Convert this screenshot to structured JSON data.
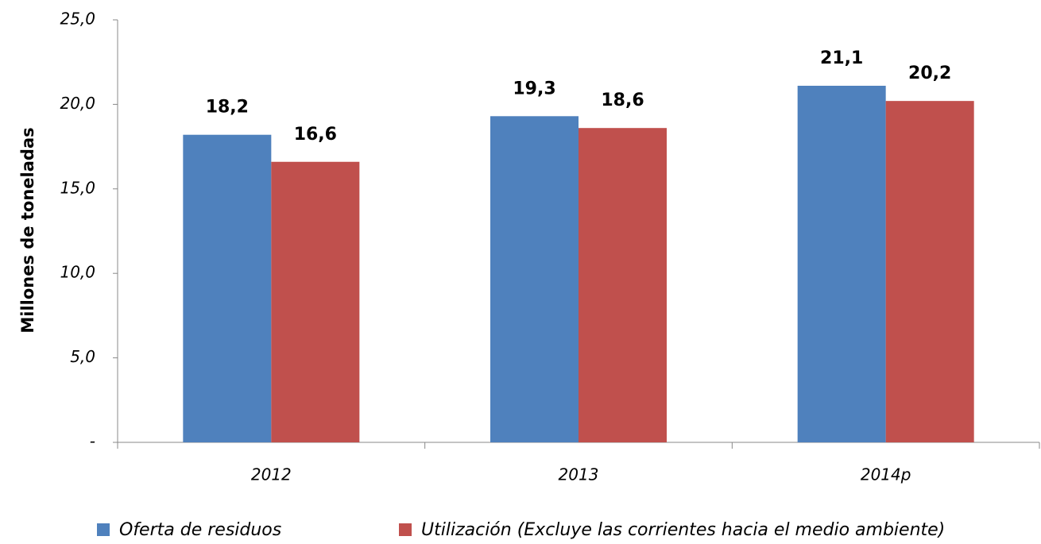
{
  "chart_data": {
    "type": "bar",
    "y_label": "Millones de toneladas",
    "categories": [
      "2012",
      "2013",
      "2014p"
    ],
    "series": [
      {
        "name": "Oferta de residuos",
        "color": "#4f81bd",
        "values": [
          18.2,
          19.3,
          21.1
        ],
        "value_labels": [
          "18,2",
          "19,3",
          "21,1"
        ]
      },
      {
        "name": "Utilización (Excluye las corrientes hacia el medio ambiente)",
        "color": "#c0504d",
        "values": [
          16.6,
          18.6,
          20.2
        ],
        "value_labels": [
          "16,6",
          "18,6",
          "20,2"
        ]
      }
    ],
    "ylim": [
      0,
      25
    ],
    "yticks": [
      {
        "value": 0,
        "label": "-"
      },
      {
        "value": 5,
        "label": "5,0"
      },
      {
        "value": 10,
        "label": "10,0"
      },
      {
        "value": 15,
        "label": "15,0"
      },
      {
        "value": 20,
        "label": "20,0"
      },
      {
        "value": 25,
        "label": "25,0"
      }
    ],
    "grid": false,
    "legend": "bottom"
  }
}
